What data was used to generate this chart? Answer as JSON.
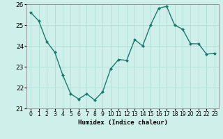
{
  "x": [
    0,
    1,
    2,
    3,
    4,
    5,
    6,
    7,
    8,
    9,
    10,
    11,
    12,
    13,
    14,
    15,
    16,
    17,
    18,
    19,
    20,
    21,
    22,
    23
  ],
  "y": [
    25.6,
    25.2,
    24.2,
    23.7,
    22.6,
    21.7,
    21.45,
    21.7,
    21.4,
    21.8,
    22.9,
    23.35,
    23.3,
    24.3,
    24.0,
    25.0,
    25.8,
    25.9,
    25.0,
    24.8,
    24.1,
    24.1,
    23.6,
    23.65
  ],
  "line_color": "#1a7a6e",
  "marker": "D",
  "marker_size": 2.0,
  "bg_color": "#cff0ea",
  "grid_color": "#b0ddd8",
  "xlabel": "Humidex (Indice chaleur)",
  "ylim": [
    21,
    26
  ],
  "xlim": [
    -0.5,
    23.5
  ],
  "yticks": [
    21,
    22,
    23,
    24,
    25,
    26
  ],
  "xtick_labels": [
    "0",
    "1",
    "2",
    "3",
    "4",
    "5",
    "6",
    "7",
    "8",
    "9",
    "10",
    "11",
    "12",
    "13",
    "14",
    "15",
    "16",
    "17",
    "18",
    "19",
    "20",
    "21",
    "22",
    "23"
  ],
  "xlabel_fontsize": 6.5,
  "ytick_fontsize": 6.5,
  "xtick_fontsize": 5.5,
  "line_width": 1.0
}
